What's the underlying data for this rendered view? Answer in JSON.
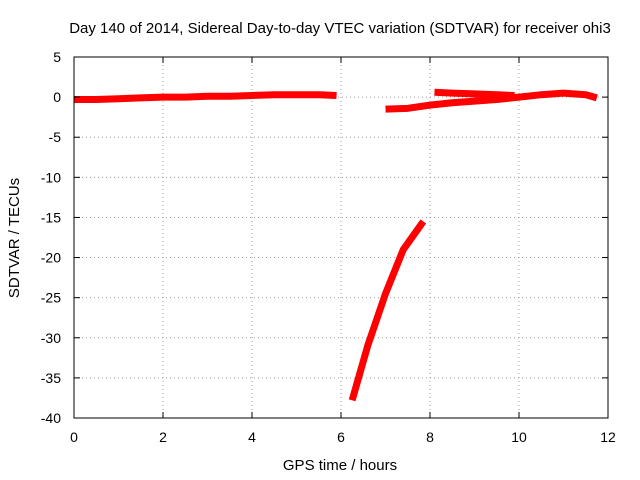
{
  "chart_data": {
    "type": "line",
    "title": "Day 140 of 2014, Sidereal Day-to-day VTEC variation (SDTVAR) for receiver ohi3",
    "xlabel": "GPS time / hours",
    "ylabel": "SDTVAR / TECUs",
    "xlim": [
      0,
      12
    ],
    "ylim": [
      -40,
      5
    ],
    "xticks": [
      0,
      2,
      4,
      6,
      8,
      10,
      12
    ],
    "yticks": [
      5,
      0,
      -5,
      -10,
      -15,
      -20,
      -25,
      -30,
      -35,
      -40
    ],
    "grid": true,
    "legend": "none",
    "series_color": "#ff0000",
    "series": [
      {
        "x": [
          0.0,
          0.5,
          1.0,
          1.5,
          2.0,
          2.5,
          3.0,
          3.5,
          4.0,
          4.5,
          5.0,
          5.5,
          5.9
        ],
        "y": [
          -0.3,
          -0.3,
          -0.2,
          -0.1,
          0.0,
          0.0,
          0.1,
          0.1,
          0.2,
          0.3,
          0.3,
          0.3,
          0.2
        ]
      },
      {
        "x": [
          6.25,
          6.6,
          7.0,
          7.4,
          7.85
        ],
        "y": [
          -37.8,
          -31.0,
          -24.5,
          -19.0,
          -15.5
        ]
      },
      {
        "x": [
          7.0,
          7.5,
          8.0,
          8.5,
          9.0,
          9.5,
          10.0,
          10.5,
          11.0,
          11.5,
          11.75
        ],
        "y": [
          -1.5,
          -1.4,
          -1.0,
          -0.7,
          -0.5,
          -0.3,
          0.0,
          0.3,
          0.5,
          0.3,
          -0.1
        ]
      },
      {
        "x": [
          8.1,
          8.5,
          9.0,
          9.5,
          9.9
        ],
        "y": [
          0.6,
          0.5,
          0.4,
          0.3,
          0.2
        ]
      }
    ]
  }
}
